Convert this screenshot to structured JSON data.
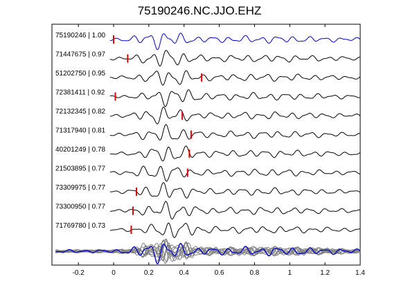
{
  "chart_data": {
    "type": "line",
    "title": "75190246.NC.JJO.EHZ",
    "xlabel": "",
    "ylabel": "",
    "xlim": [
      -0.35,
      1.4
    ],
    "x_ticks": [
      -0.2,
      0,
      0.2,
      0.4,
      0.6,
      0.8,
      1,
      1.2,
      1.4
    ],
    "x_tick_labels": [
      "-0.2",
      "0",
      "0.2",
      "0.4",
      "0.6",
      "0.8",
      "1",
      "1.2",
      "1.4"
    ],
    "grid": false,
    "colors": {
      "reference": "#0000cc",
      "trace": "#000000",
      "stack": "#808080",
      "pick": "#dd0000"
    },
    "series": [
      {
        "name": "75190246 | 1.00",
        "pick": 0.0
      },
      {
        "name": "71447675 | 0.97",
        "pick": 0.08
      },
      {
        "name": "51202750 | 0.95",
        "pick": 0.5
      },
      {
        "name": "72381411 | 0.92",
        "pick": 0.01
      },
      {
        "name": "72132345 | 0.82",
        "pick": 0.39
      },
      {
        "name": "71317940 | 0.81",
        "pick": 0.44
      },
      {
        "name": "40201249 | 0.78",
        "pick": 0.43
      },
      {
        "name": "21503895 | 0.77",
        "pick": 0.42
      },
      {
        "name": "73309975 | 0.77",
        "pick": 0.13
      },
      {
        "name": "73300950 | 0.77",
        "pick": 0.11
      },
      {
        "name": "71769780 | 0.73",
        "pick": 0.1
      }
    ]
  }
}
